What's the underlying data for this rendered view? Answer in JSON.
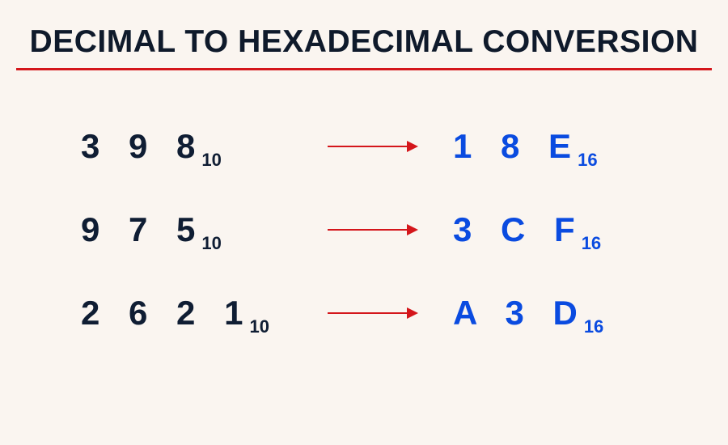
{
  "colors": {
    "background": "#faf5f0",
    "title": "#0f1a2b",
    "underline": "#d4161b",
    "decimal_text": "#0f1d33",
    "hex_text": "#0a4be0",
    "arrow": "#d4161b"
  },
  "typography": {
    "title_fontsize": 39,
    "digit_fontsize": 42,
    "sub_fontsize": 22
  },
  "title": "DECIMAL TO HEXADECIMAL CONVERSION",
  "conversions": [
    {
      "decimal": "3 9 8",
      "dec_base": "10",
      "hex": "1 8 E",
      "hex_base": "16"
    },
    {
      "decimal": "9 7 5",
      "dec_base": "10",
      "hex": "3 C F",
      "hex_base": "16"
    },
    {
      "decimal": "2 6 2 1",
      "dec_base": "10",
      "hex": "A 3 D",
      "hex_base": "16"
    }
  ]
}
